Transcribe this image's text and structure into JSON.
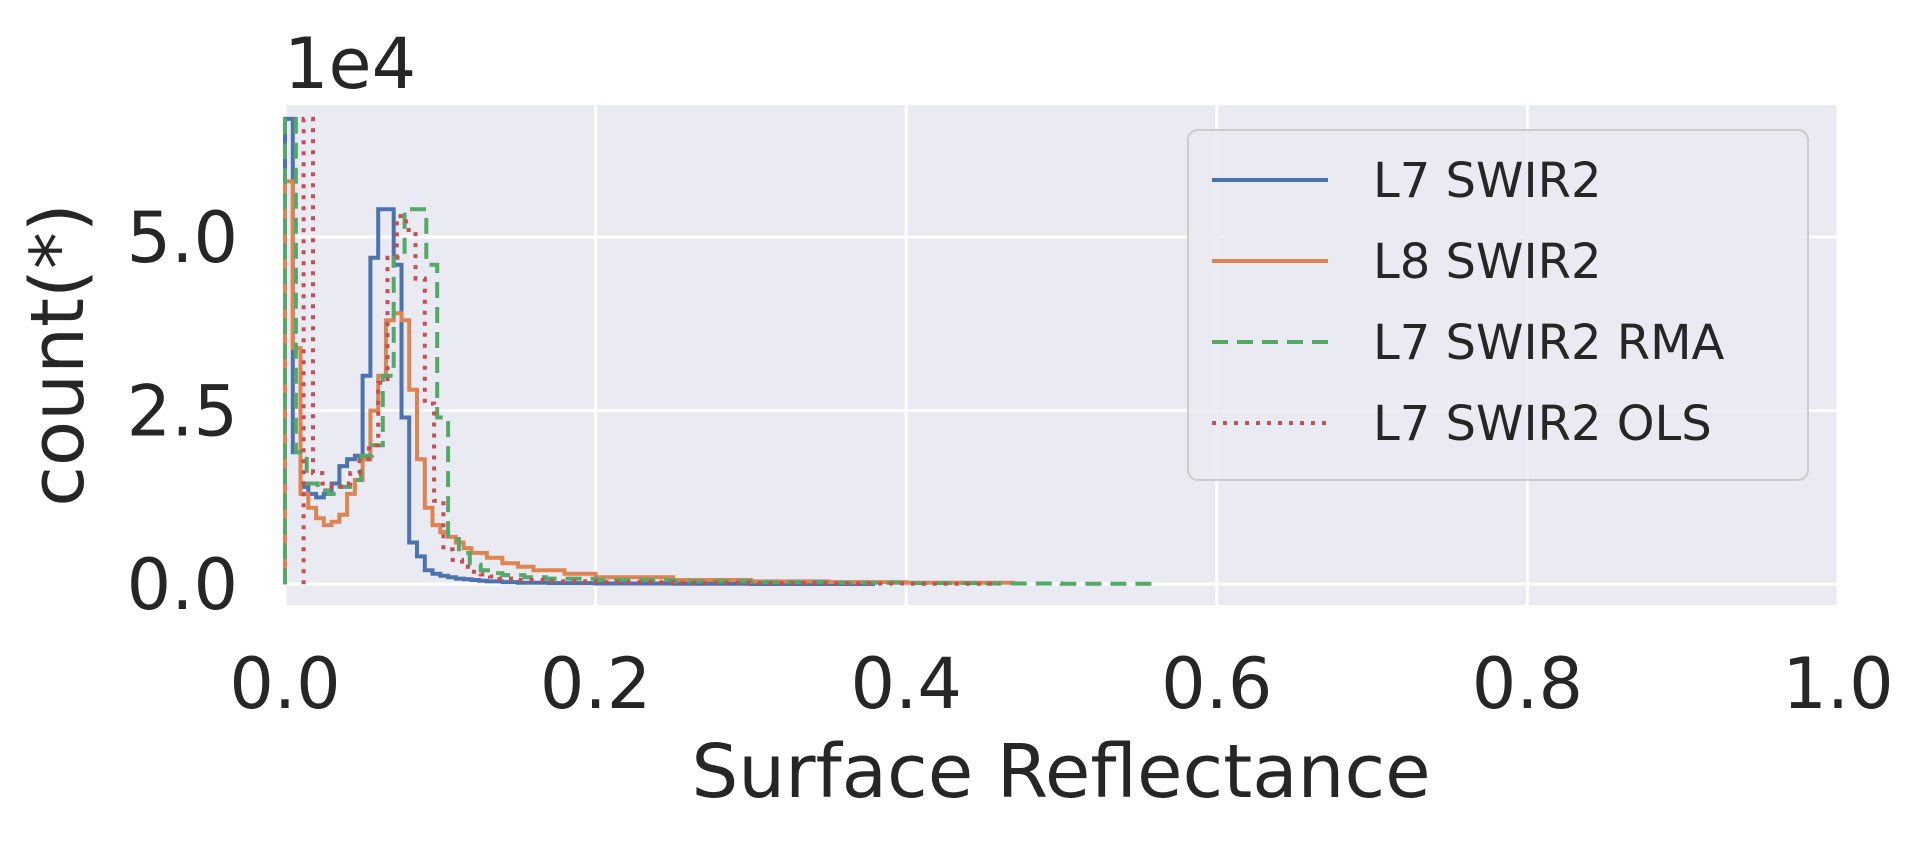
{
  "chart_data": {
    "type": "line",
    "xlabel": "Surface Reflectance",
    "ylabel": "count(*)",
    "y_scale_label": "1e4",
    "xlim": [
      0.0,
      1.0
    ],
    "ylim": [
      -0.3,
      6.9
    ],
    "x_ticks": [
      {
        "value": 0.0,
        "label": "0.0"
      },
      {
        "value": 0.2,
        "label": "0.2"
      },
      {
        "value": 0.4,
        "label": "0.4"
      },
      {
        "value": 0.6,
        "label": "0.6"
      },
      {
        "value": 0.8,
        "label": "0.8"
      },
      {
        "value": 1.0,
        "label": "1.0"
      }
    ],
    "y_ticks": [
      {
        "value": 0.0,
        "label": "0.0"
      },
      {
        "value": 2.5,
        "label": "2.5"
      },
      {
        "value": 5.0,
        "label": "5.0"
      }
    ],
    "grid": true,
    "legend_position": "top-right",
    "series": [
      {
        "name": "L7 SWIR2",
        "color": "#4c72b0",
        "dash": "solid",
        "bin_edges": [
          0.0,
          0.005,
          0.01,
          0.015,
          0.02,
          0.025,
          0.03,
          0.035,
          0.04,
          0.045,
          0.05,
          0.055,
          0.06,
          0.065,
          0.07,
          0.075,
          0.08,
          0.085,
          0.09,
          0.095,
          0.1,
          0.105,
          0.11,
          0.115,
          0.12,
          0.125,
          0.13,
          0.14,
          0.15,
          0.17,
          0.2,
          0.25,
          0.3,
          0.35,
          0.38
        ],
        "counts": [
          6.7,
          1.9,
          1.4,
          1.3,
          1.25,
          1.3,
          1.45,
          1.7,
          1.8,
          1.85,
          3.0,
          4.7,
          5.4,
          5.4,
          4.6,
          2.4,
          0.6,
          0.4,
          0.2,
          0.15,
          0.12,
          0.1,
          0.08,
          0.07,
          0.06,
          0.05,
          0.04,
          0.03,
          0.02,
          0.015,
          0.01,
          0.005,
          0.003,
          0.002
        ]
      },
      {
        "name": "L8 SWIR2",
        "color": "#dd8452",
        "dash": "solid",
        "bin_edges": [
          0.0,
          0.005,
          0.01,
          0.015,
          0.02,
          0.025,
          0.03,
          0.035,
          0.04,
          0.045,
          0.05,
          0.055,
          0.06,
          0.065,
          0.07,
          0.075,
          0.08,
          0.085,
          0.09,
          0.095,
          0.1,
          0.105,
          0.11,
          0.115,
          0.12,
          0.13,
          0.14,
          0.15,
          0.16,
          0.18,
          0.2,
          0.25,
          0.3,
          0.35,
          0.4,
          0.47
        ],
        "counts": [
          5.8,
          3.4,
          1.3,
          1.1,
          0.95,
          0.85,
          0.9,
          1.0,
          1.3,
          1.5,
          1.8,
          2.5,
          3.0,
          3.8,
          3.9,
          3.8,
          2.8,
          1.8,
          1.1,
          0.85,
          0.75,
          0.68,
          0.6,
          0.52,
          0.45,
          0.38,
          0.3,
          0.25,
          0.2,
          0.15,
          0.1,
          0.06,
          0.04,
          0.03,
          0.02
        ]
      },
      {
        "name": "L7 SWIR2 RMA",
        "color": "#55a868",
        "dash": "dashed",
        "bin_edges": [
          0.0,
          0.007,
          0.014,
          0.021,
          0.028,
          0.035,
          0.042,
          0.049,
          0.056,
          0.063,
          0.07,
          0.077,
          0.084,
          0.091,
          0.098,
          0.105,
          0.112,
          0.119,
          0.126,
          0.133,
          0.14,
          0.154,
          0.168,
          0.2,
          0.25,
          0.3,
          0.35,
          0.4,
          0.45,
          0.5,
          0.56
        ],
        "counts": [
          6.7,
          1.9,
          1.45,
          1.35,
          1.3,
          1.4,
          1.5,
          1.85,
          2.0,
          3.0,
          4.7,
          5.4,
          5.4,
          4.6,
          2.4,
          0.65,
          0.45,
          0.28,
          0.2,
          0.16,
          0.13,
          0.1,
          0.08,
          0.06,
          0.04,
          0.03,
          0.02,
          0.015,
          0.01,
          0.005
        ]
      },
      {
        "name": "L7 SWIR2 OLS",
        "color": "#c44e52",
        "dash": "dotted",
        "bin_edges": [
          0.012,
          0.018,
          0.024,
          0.03,
          0.036,
          0.042,
          0.048,
          0.054,
          0.06,
          0.066,
          0.072,
          0.078,
          0.084,
          0.09,
          0.096,
          0.102,
          0.108,
          0.114,
          0.12,
          0.126,
          0.132,
          0.138,
          0.15,
          0.17,
          0.2,
          0.25,
          0.3,
          0.35,
          0.4,
          0.46
        ],
        "counts": [
          6.7,
          1.6,
          1.45,
          1.4,
          1.45,
          1.6,
          1.8,
          2.0,
          2.9,
          4.7,
          5.3,
          5.1,
          4.4,
          2.6,
          1.2,
          0.5,
          0.35,
          0.25,
          0.18,
          0.14,
          0.11,
          0.08,
          0.06,
          0.04,
          0.03,
          0.02,
          0.015,
          0.01,
          0.005
        ]
      }
    ]
  }
}
